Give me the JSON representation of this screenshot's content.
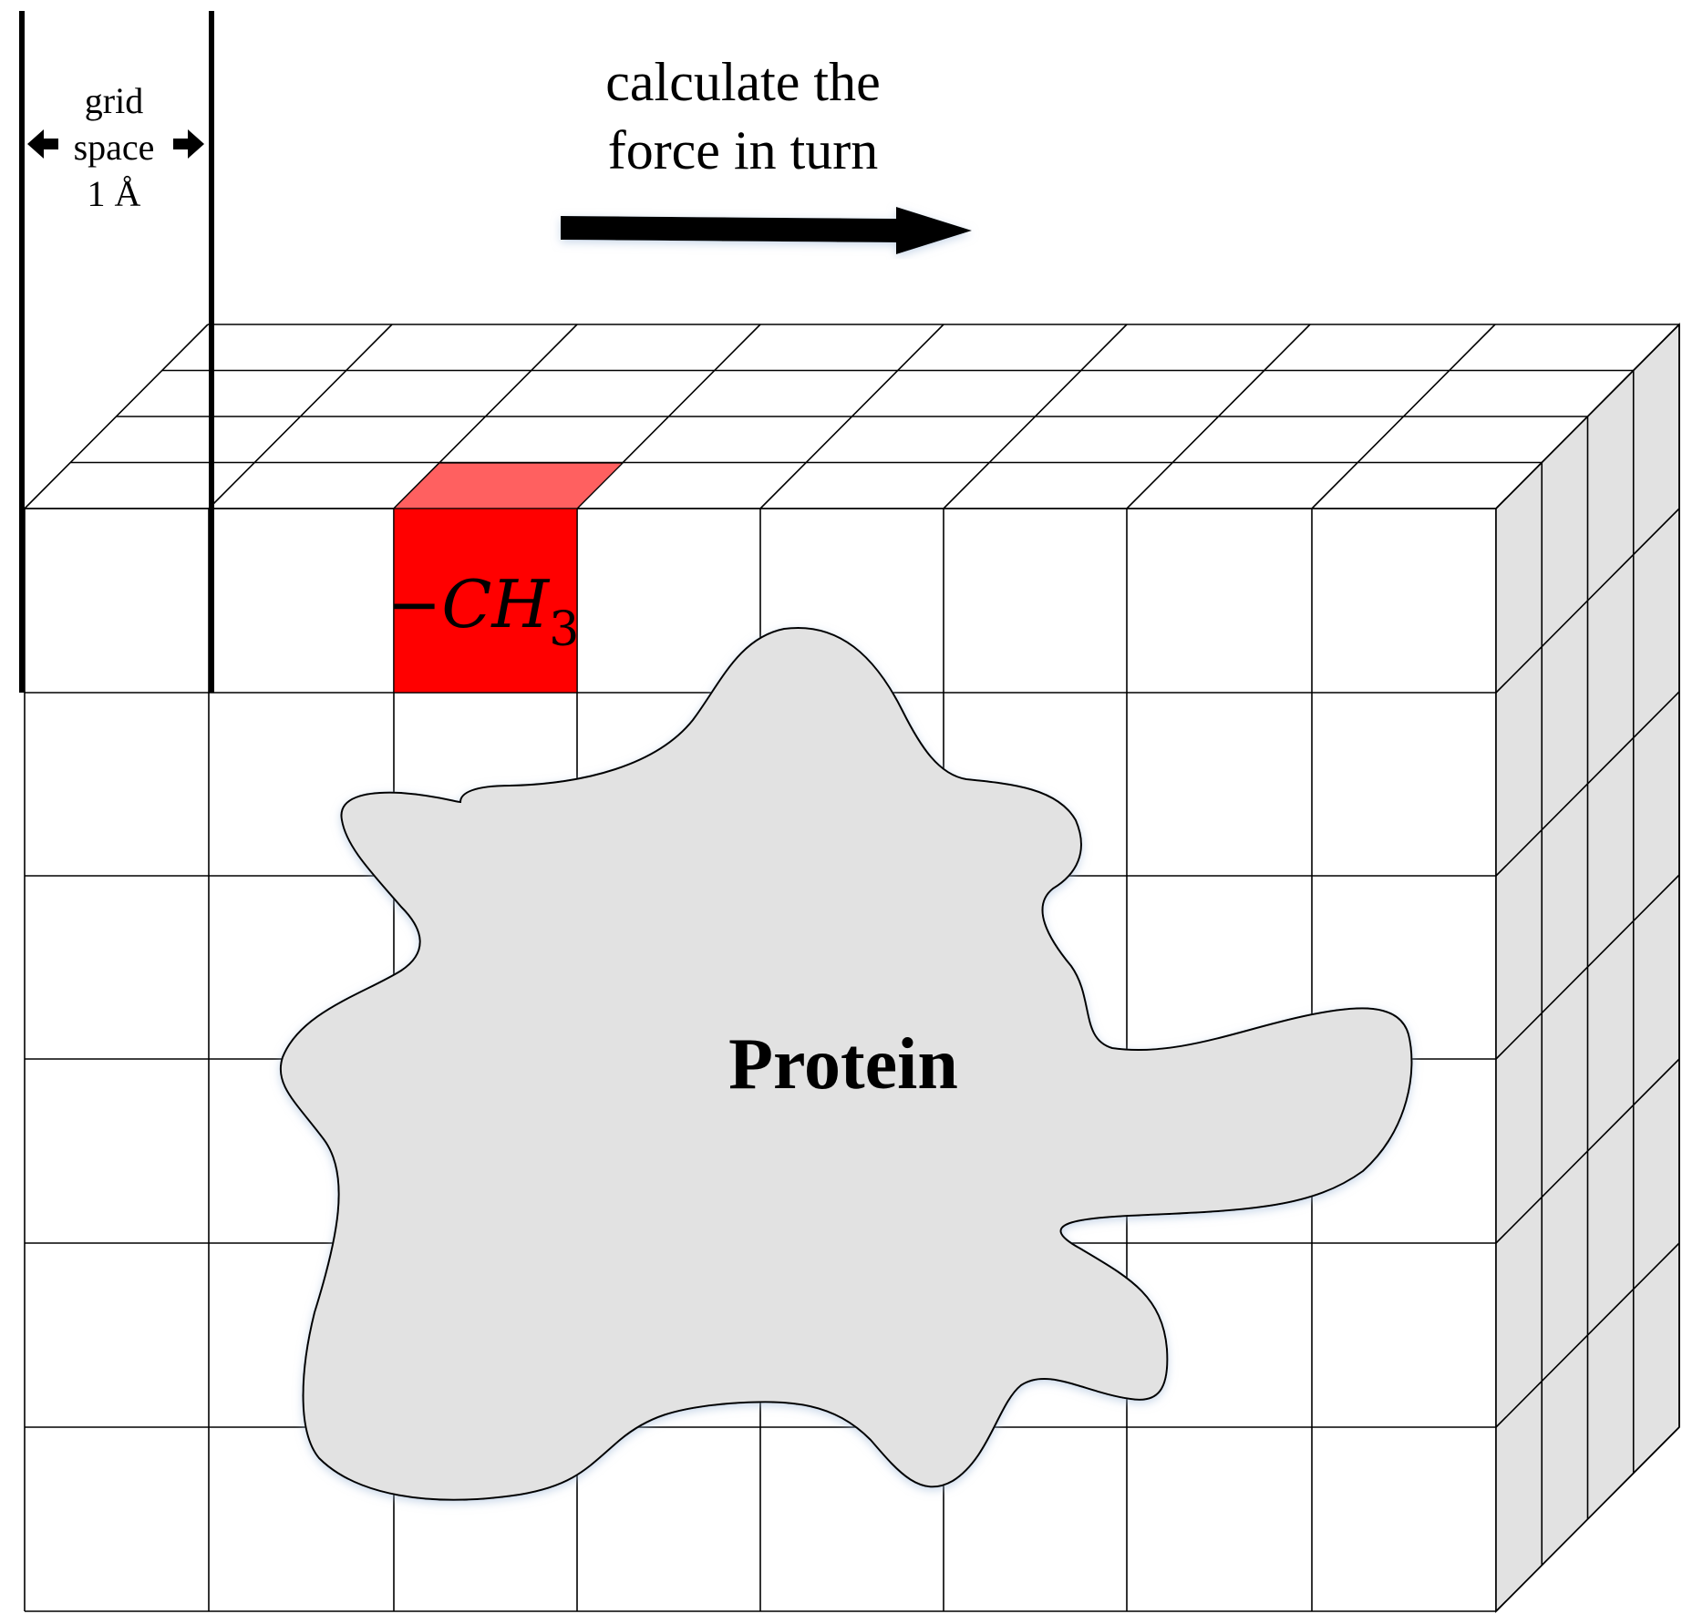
{
  "grid_spacing_label": {
    "line1": "grid",
    "line2": "space",
    "line3": "1 Å"
  },
  "direction_label": {
    "line1": "calculate the",
    "line2": "force in turn"
  },
  "probe_label": {
    "dash": "−",
    "main": "CH",
    "subscript": "3"
  },
  "protein_label": "Protein",
  "colors": {
    "probe_front": "#ff0000",
    "probe_top": "#ff6060",
    "protein_fill": "#e2e2e2",
    "side_face": "#e2e2e2",
    "grid_line": "#000000"
  }
}
